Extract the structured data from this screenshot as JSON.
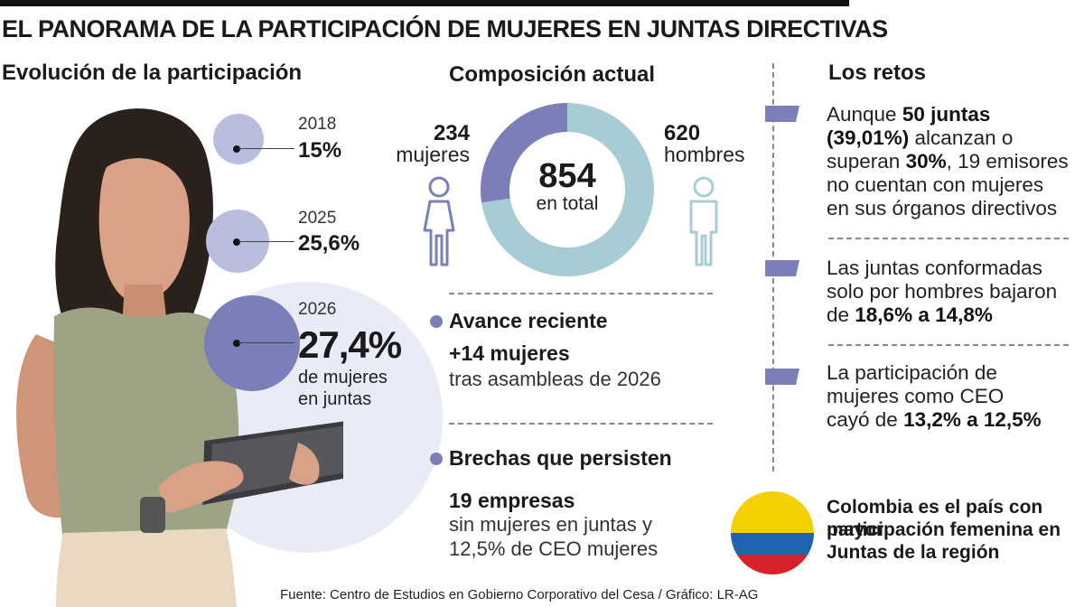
{
  "title": "EL PANORAMA DE LA PARTICIPACIÓN DE MUJERES EN JUNTAS DIRECTIVAS",
  "evolution": {
    "heading": "Evolución de la participación",
    "items": [
      {
        "year": "2018",
        "value": "15%"
      },
      {
        "year": "2025",
        "value": "25,6%"
      },
      {
        "year": "2026",
        "value": "27,4%",
        "caption": [
          "de mujeres",
          "en juntas"
        ]
      }
    ]
  },
  "composition": {
    "heading": "Composición actual",
    "total": "854",
    "total_label": "en total",
    "women_count": "234",
    "women_label": "mujeres",
    "men_count": "620",
    "men_label": "hombres",
    "colors": {
      "women": "#7b7fb8",
      "men": "#a8ccd4"
    }
  },
  "chart_data": {
    "type": "pie",
    "title": "Composición actual",
    "categories": [
      "mujeres",
      "hombres"
    ],
    "values": [
      234,
      620
    ],
    "total": 854
  },
  "evolution_chart": {
    "type": "bar",
    "categories": [
      "2018",
      "2025",
      "2026"
    ],
    "values": [
      15,
      25.6,
      27.4
    ],
    "unit": "%"
  },
  "recent": {
    "heading": "Avance reciente",
    "bold": "+14 mujeres",
    "text": "tras asambleas de 2026"
  },
  "gaps": {
    "heading": "Brechas que persisten",
    "bold": "19 empresas",
    "lines": [
      "sin mujeres en juntas y",
      "12,5% de CEO mujeres"
    ]
  },
  "challenges": {
    "heading": "Los retos",
    "items": [
      {
        "lines": [
          [
            {
              "t": "Aunque ",
              "b": false
            },
            {
              "t": "50 juntas",
              "b": true
            }
          ],
          [
            {
              "t": "(39,01%)",
              "b": true
            },
            {
              "t": " alcanzan o",
              "b": false
            }
          ],
          [
            {
              "t": "superan ",
              "b": false
            },
            {
              "t": "30%",
              "b": true
            },
            {
              "t": ", 19 emisores",
              "b": false
            }
          ],
          [
            {
              "t": "no cuentan con mujeres",
              "b": false
            }
          ],
          [
            {
              "t": "en sus órganos directivos",
              "b": false
            }
          ]
        ]
      },
      {
        "lines": [
          [
            {
              "t": "Las juntas conformadas",
              "b": false
            }
          ],
          [
            {
              "t": "solo por hombres bajaron",
              "b": false
            }
          ],
          [
            {
              "t": "de ",
              "b": false
            },
            {
              "t": "18,6% a 14,8%",
              "b": true
            }
          ]
        ]
      },
      {
        "lines": [
          [
            {
              "t": "La participación de",
              "b": false
            }
          ],
          [
            {
              "t": "mujeres como CEO",
              "b": false
            }
          ],
          [
            {
              "t": "cayó de ",
              "b": false
            },
            {
              "t": "13,2% a 12,5%",
              "b": true
            }
          ]
        ]
      }
    ]
  },
  "colombia_note": [
    "Colombia es el país con mayor",
    "participación femenina en",
    "Juntas de la región"
  ],
  "source": "Fuente: Centro de Estudios en Gobierno Corporativo del Cesa / Gráfico: LR-AG",
  "colors": {
    "accent": "#7b7fb8",
    "light_purple": "#b9bedf",
    "pale_purple": "#e9ebf6",
    "teal": "#a8ccd4",
    "flag_yellow": "#f5d000",
    "flag_blue": "#1f63b3",
    "flag_red": "#d6202a"
  }
}
